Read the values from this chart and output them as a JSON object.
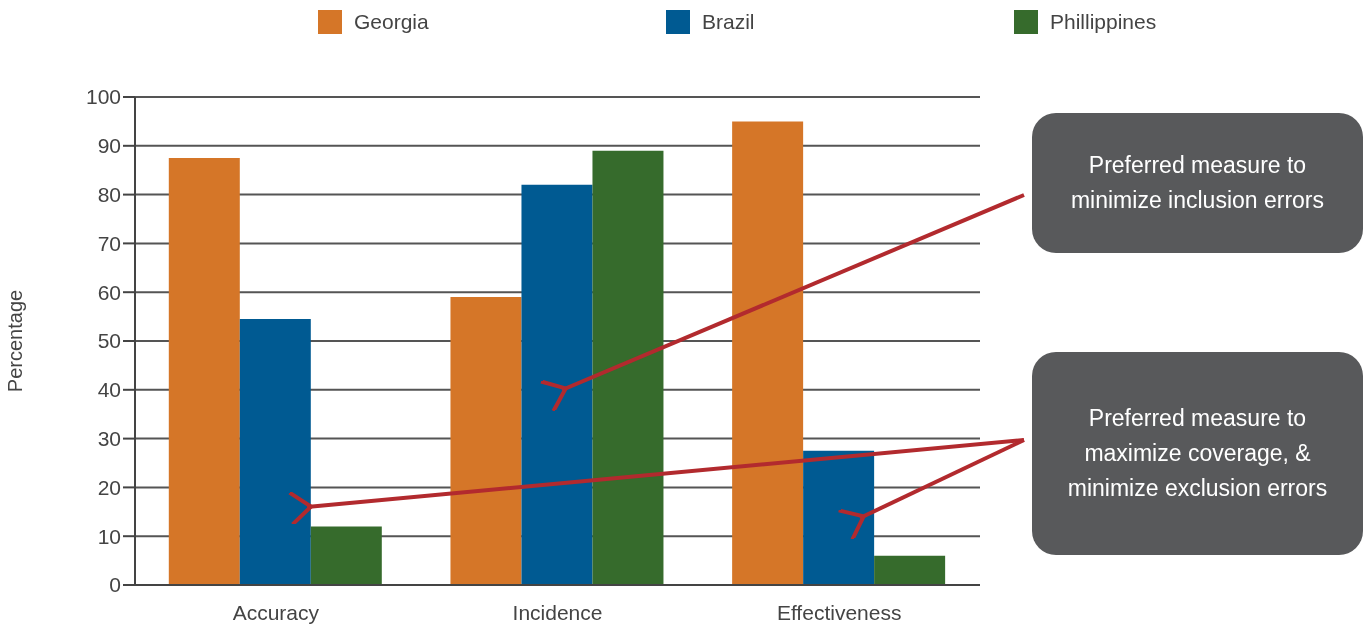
{
  "chart_data": {
    "type": "bar",
    "ylabel": "Percentage",
    "categories": [
      "Accuracy",
      "Incidence",
      "Effectiveness"
    ],
    "series": [
      {
        "name": "Georgia",
        "color": "#d57628",
        "values": [
          87.5,
          59,
          95
        ]
      },
      {
        "name": "Brazil",
        "color": "#005a92",
        "values": [
          54.5,
          82,
          27.5
        ]
      },
      {
        "name": "Phillippines",
        "color": "#366b2c",
        "values": [
          12,
          89,
          6
        ]
      }
    ],
    "ylim": [
      0,
      100
    ],
    "yticks": [
      0,
      10,
      20,
      30,
      40,
      50,
      60,
      70,
      80,
      90,
      100
    ],
    "grid": "y",
    "legend": "top",
    "annotations": [
      "Preferred measure to minimize inclusion errors",
      "Preferred measure to maximize coverage, & minimize exclusion errors"
    ]
  }
}
